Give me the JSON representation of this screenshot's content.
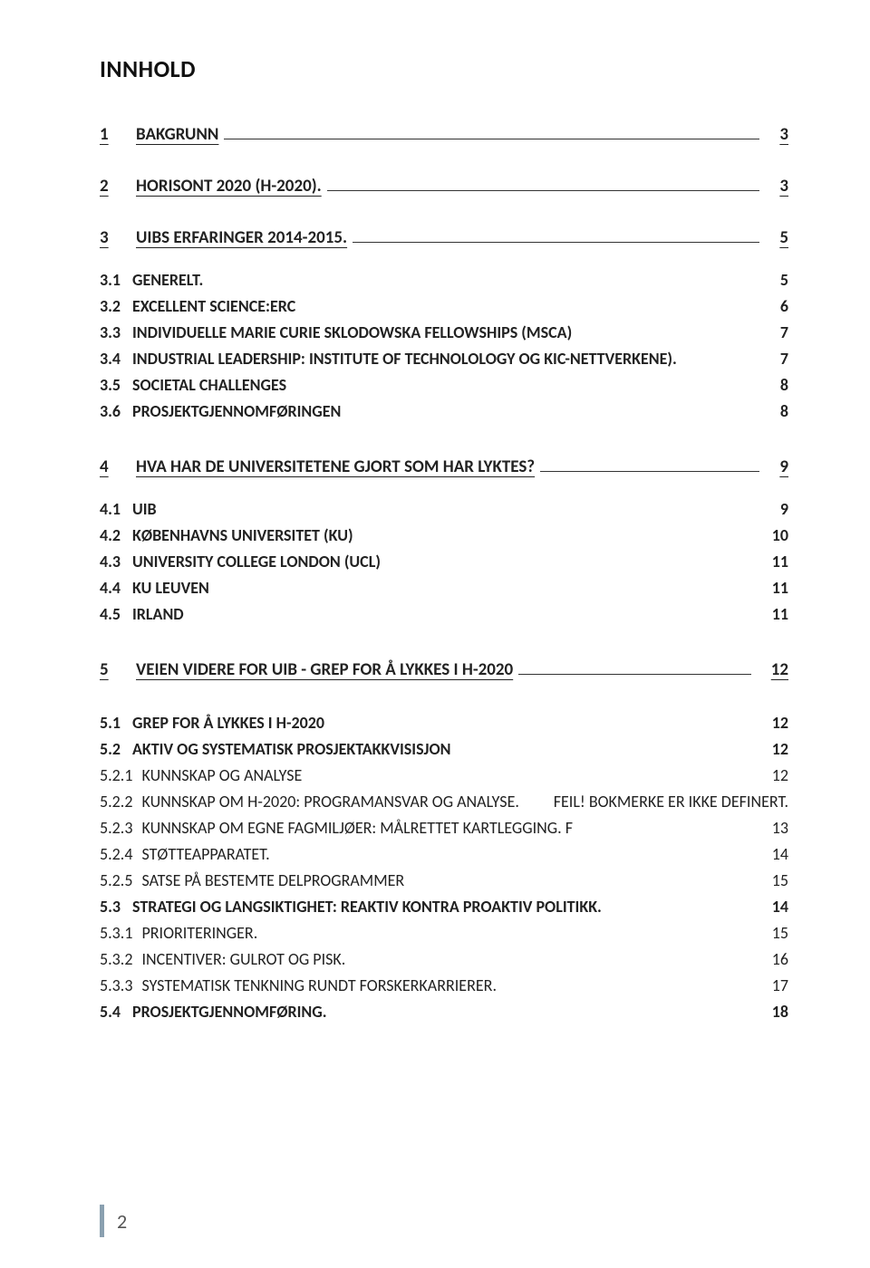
{
  "colors": {
    "background": "#ffffff",
    "text": "#222222",
    "title": "#111111",
    "footer_bar": "#8aa0b0",
    "footer_text": "#555555",
    "underline": "#333333"
  },
  "typography": {
    "font_family": "Calibri, Segoe UI, Arial, sans-serif",
    "title_size_pt": 20,
    "h1_size_pt": 14,
    "h2_size_pt": 13,
    "body_size_pt": 13
  },
  "title": "INNHOLD",
  "toc": [
    {
      "level": 1,
      "num": "1",
      "label": "BAKGRUNN",
      "page": "3",
      "underline": true
    },
    {
      "gap": "lg"
    },
    {
      "level": 1,
      "num": "2",
      "label": "HORISONT 2020 (H-2020).",
      "page": "3",
      "underline": true
    },
    {
      "gap": "lg"
    },
    {
      "level": 1,
      "num": "3",
      "label": "UIBS ERFARINGER 2014-2015.",
      "page": "5",
      "underline": true
    },
    {
      "gap": "md"
    },
    {
      "level": 2,
      "num": "3.1",
      "label": "GENERELT.",
      "page": "5"
    },
    {
      "level": 2,
      "num": "3.2",
      "label": "EXCELLENT SCIENCE:ERC",
      "page": "6"
    },
    {
      "level": 2,
      "num": "3.3",
      "label": "INDIVIDUELLE MARIE CURIE SKLODOWSKA FELLOWSHIPS (MSCA)",
      "page": "7"
    },
    {
      "level": 2,
      "num": "3.4",
      "label": "INDUSTRIAL LEADERSHIP: INSTITUTE OF TECHNOLOLOGY OG KIC-NETTVERKENE).",
      "page": "7"
    },
    {
      "level": 2,
      "num": "3.5",
      "label": "SOCIETAL CHALLENGES",
      "page": "8"
    },
    {
      "level": 2,
      "num": "3.6",
      "label": "PROSJEKTGJENNOMFØRINGEN",
      "page": "8"
    },
    {
      "gap": "lg"
    },
    {
      "level": 1,
      "num": "4",
      "label": "HVA HAR DE UNIVERSITETENE GJORT SOM HAR LYKTES?",
      "page": "9",
      "underline": true
    },
    {
      "gap": "md"
    },
    {
      "level": 2,
      "num": "4.1",
      "label": "UIB",
      "page": "9"
    },
    {
      "level": 2,
      "num": "4.2",
      "label": "KØBENHAVNS UNIVERSITET (KU)",
      "page": "10"
    },
    {
      "level": 2,
      "num": "4.3",
      "label": "UNIVERSITY COLLEGE LONDON (UCL)",
      "page": "11"
    },
    {
      "level": 2,
      "num": "4.4",
      "label": "KU LEUVEN",
      "page": "11"
    },
    {
      "level": 2,
      "num": "4.5",
      "label": "IRLAND",
      "page": "11"
    },
    {
      "gap": "lg"
    },
    {
      "level": 1,
      "num": "5",
      "label": "VEIEN VIDERE FOR UIB - GREP FOR Å LYKKES I H-2020",
      "page": "12",
      "underline": true
    },
    {
      "gap": "lg"
    },
    {
      "level": 2,
      "num": "5.1",
      "label": "GREP FOR Å LYKKES I H-2020",
      "page": "12"
    },
    {
      "level": 2,
      "num": "5.2",
      "label": "AKTIV OG SYSTEMATISK PROSJEKTAKKVISISJON",
      "page": "12"
    },
    {
      "level": 3,
      "num": "5.2.1",
      "label": "KUNNSKAP OG ANALYSE",
      "page": "12"
    },
    {
      "level": 3,
      "num": "5.2.2",
      "label": "KUNNSKAP OM H-2020: PROGRAMANSVAR OG ANALYSE.",
      "page": "FEIL! BOKMERKE ER IKKE DEFINERT."
    },
    {
      "level": 3,
      "num": "5.2.3",
      "label": "KUNNSKAP OM EGNE FAGMILJØER: MÅLRETTET KARTLEGGING.  F",
      "page": "13"
    },
    {
      "level": 3,
      "num": "5.2.4",
      "label": "STØTTEAPPARATET.",
      "page": "14"
    },
    {
      "level": 3,
      "num": "5.2.5",
      "label": "SATSE PÅ BESTEMTE DELPROGRAMMER",
      "page": "15"
    },
    {
      "level": 2,
      "num": "5.3",
      "label": "STRATEGI OG LANGSIKTIGHET: REAKTIV KONTRA PROAKTIV POLITIKK.",
      "page": "14"
    },
    {
      "level": 3,
      "num": "5.3.1",
      "label": "PRIORITERINGER.",
      "page": "15"
    },
    {
      "level": 3,
      "num": "5.3.2",
      "label": "INCENTIVER: GULROT OG PISK.",
      "page": "16"
    },
    {
      "level": 3,
      "num": "5.3.3",
      "label": "SYSTEMATISK TENKNING RUNDT FORSKERKARRIERER.",
      "page": "17"
    },
    {
      "level": 2,
      "num": "5.4",
      "label": "PROSJEKTGJENNOMFØRING.",
      "page": "18"
    }
  ],
  "footer": {
    "page_number": "2"
  }
}
